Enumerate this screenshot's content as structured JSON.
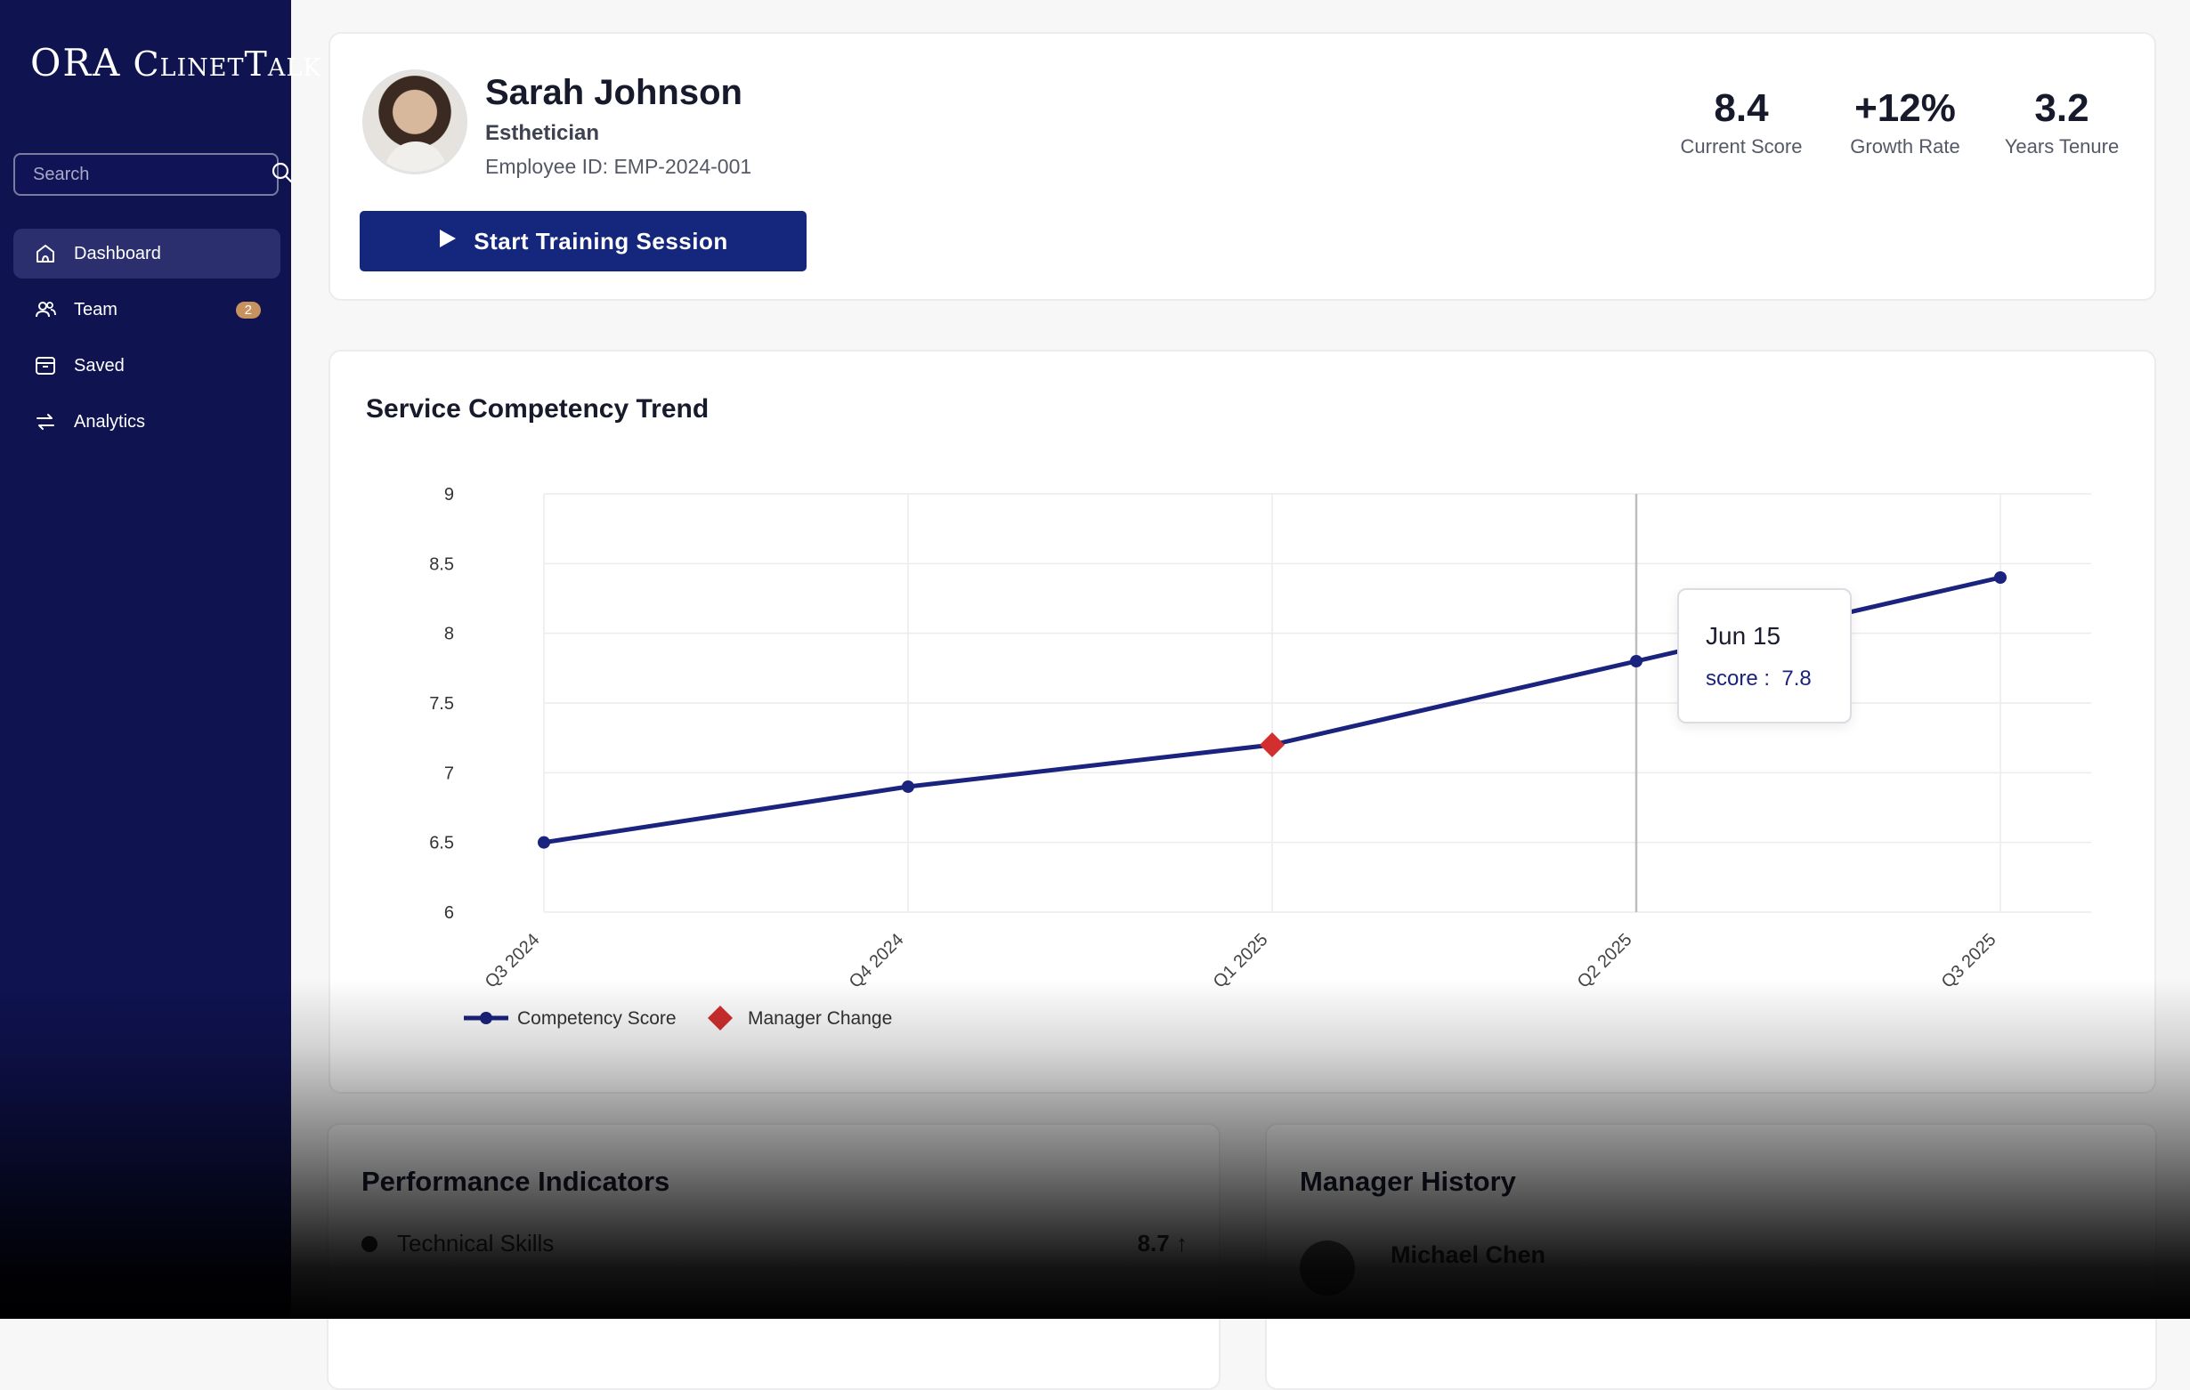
{
  "app": {
    "logo_ora": "ORA",
    "logo_name": "ClinetTalk"
  },
  "search": {
    "placeholder": "Search"
  },
  "sidebar": {
    "items": [
      {
        "label": "Dashboard",
        "icon": "home-icon",
        "active": true
      },
      {
        "label": "Team",
        "icon": "users-icon",
        "badge": "2"
      },
      {
        "label": "Saved",
        "icon": "archive-icon"
      },
      {
        "label": "Analytics",
        "icon": "arrows-icon"
      }
    ]
  },
  "profile": {
    "name": "Sarah Johnson",
    "role": "Esthetician",
    "employee_id": "Employee ID: EMP-2024-001",
    "button_label": "Start Training Session",
    "stats": [
      {
        "value": "8.4",
        "label": "Current Score"
      },
      {
        "value": "+12%",
        "label": "Growth Rate"
      },
      {
        "value": "3.2",
        "label": "Years Tenure"
      }
    ]
  },
  "chart_data": {
    "type": "line",
    "title": "Service Competency Trend",
    "categories": [
      "Q3 2024",
      "Q4 2024",
      "Q1 2025",
      "Q2 2025",
      "Q3 2025"
    ],
    "series": [
      {
        "name": "Competency Score",
        "values": [
          6.5,
          6.9,
          7.2,
          7.8,
          8.4
        ],
        "color": "#1a237e"
      }
    ],
    "markers": [
      {
        "name": "Manager Change",
        "category": "Q1 2025",
        "value": 7.2,
        "color": "#d32f2f",
        "shape": "diamond"
      }
    ],
    "ylim": [
      6,
      9
    ],
    "yticks": [
      "9",
      "8.5",
      "8",
      "7.5",
      "7",
      "6.5",
      "6"
    ],
    "grid": true,
    "legend_position": "bottom-left",
    "tooltip": {
      "date": "Jun 15",
      "label": "score :",
      "value": "7.8",
      "category": "Q2 2025"
    }
  },
  "performance": {
    "title": "Performance Indicators",
    "rows": [
      {
        "label": "Technical Skills",
        "value": "8.7 ↑"
      }
    ]
  },
  "managers": {
    "title": "Manager History",
    "rows": [
      {
        "name": "Michael Chen"
      }
    ]
  }
}
